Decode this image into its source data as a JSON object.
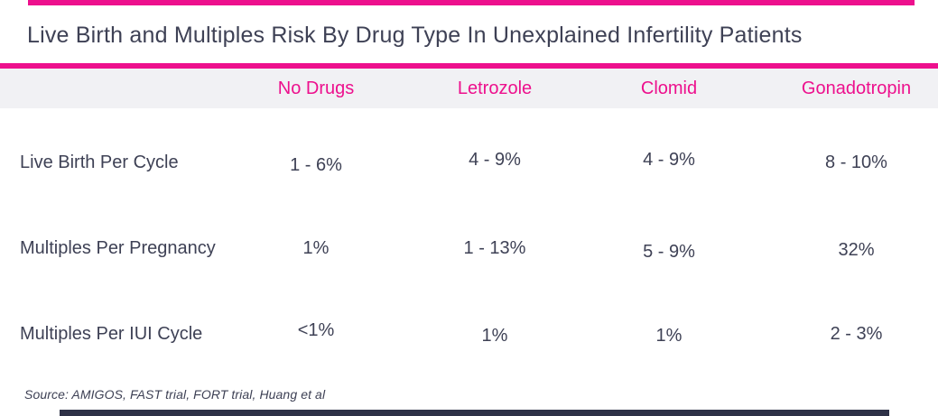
{
  "chart_data": {
    "type": "table",
    "title": "Live Birth and Multiples Risk By Drug Type In Unexplained Infertility Patients",
    "columns": [
      "No Drugs",
      "Letrozole",
      "Clomid",
      "Gonadotropin"
    ],
    "rows": [
      {
        "label": "Live Birth Per Cycle",
        "values": [
          "1 - 6%",
          "4 - 9%",
          "4 - 9%",
          "8 - 10%"
        ]
      },
      {
        "label": "Multiples Per Pregnancy",
        "values": [
          "1%",
          "1 - 13%",
          "5 - 9%",
          "32%"
        ]
      },
      {
        "label": "Multiples Per IUI Cycle",
        "values": [
          "<1%",
          "1%",
          "1%",
          "2 - 3%"
        ]
      }
    ],
    "source_note": "Source: AMIGOS, FAST trial, FORT trial, Huang et al",
    "layout": {
      "legend": "none",
      "grid": "off",
      "header_position": "top"
    }
  },
  "colors": {
    "accent_pink": "#ED108D",
    "header_band_gray": "#F1F1F4",
    "text_dark": "#3E4155",
    "footer_bar_navy": "#2E3147"
  }
}
